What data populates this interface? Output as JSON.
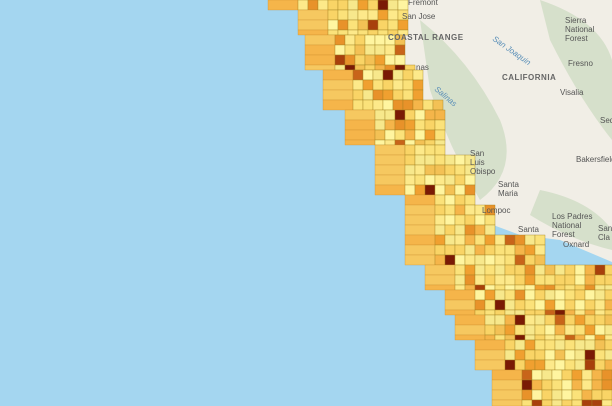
{
  "map": {
    "labels": [
      "Fremont",
      "San Jose",
      "COASTAL RANGE",
      "San Joaquin",
      "Sierra",
      "National",
      "Forest",
      "Fresno",
      "CALIFORNIA",
      "Visalia",
      "Salinas",
      "nas",
      "San",
      "Luis",
      "Obispo",
      "Santa",
      "Maria",
      "Lompoc",
      "Los Padres",
      "National",
      "Forest",
      "Bakersfield",
      "Santa",
      "Oxnard",
      "San",
      "Cla",
      "Seq"
    ]
  }
}
